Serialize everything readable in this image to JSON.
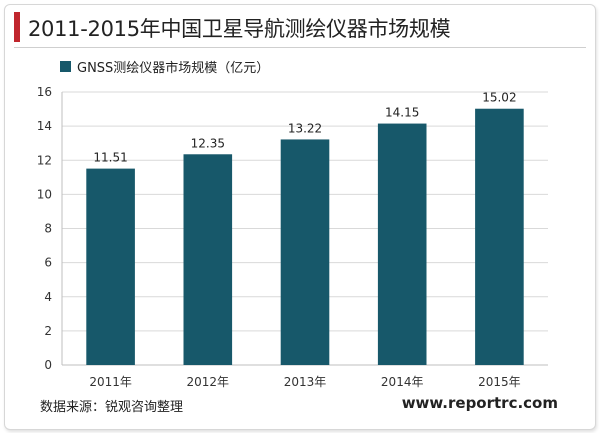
{
  "title": "2011-2015年中国卫星导航测绘仪器市场规模",
  "source": "数据来源：锐观咨询整理",
  "website": "www.reportrc.com",
  "colors": {
    "bar": "#17586a",
    "accent": "#c0262d",
    "grid": "#d9d9d9"
  },
  "chart_data": {
    "type": "bar",
    "categories": [
      "2011年",
      "2012年",
      "2013年",
      "2014年",
      "2015年"
    ],
    "series": [
      {
        "name": "GNSS测绘仪器市场规模（亿元）",
        "values": [
          11.51,
          12.35,
          13.22,
          14.15,
          15.02
        ]
      }
    ],
    "data_labels": [
      "11.51",
      "12.35",
      "13.22",
      "14.15",
      "15.02"
    ],
    "ylim": [
      0,
      16
    ],
    "yticks": [
      "0",
      "2",
      "4",
      "6",
      "8",
      "10",
      "12",
      "14",
      "16"
    ],
    "grid": true,
    "legend": "top-left"
  }
}
